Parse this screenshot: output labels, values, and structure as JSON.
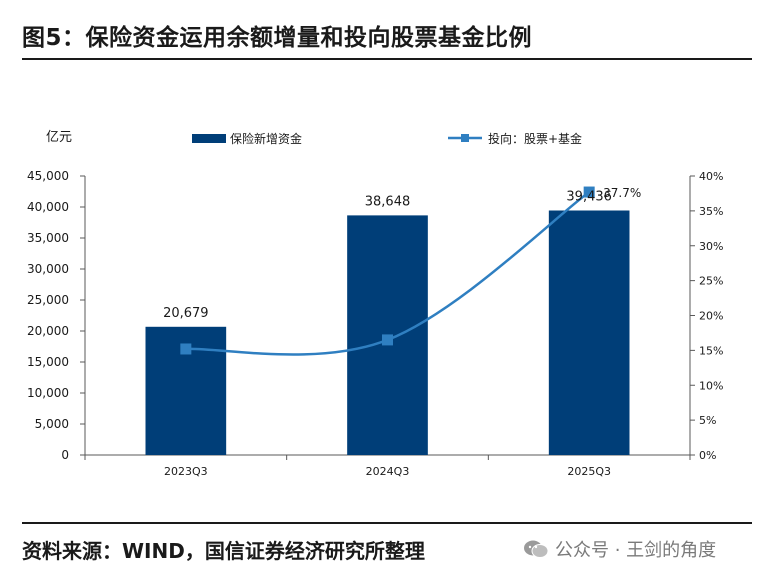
{
  "header": {
    "title": "图5：保险资金运用余额增量和投向股票基金比例"
  },
  "footer": {
    "source": "资料来源：WIND，国信证券经济研究所整理",
    "watermark": "公众号 · 王剑的角度"
  },
  "colors": {
    "bar": "#003e78",
    "line": "#2f7fc1",
    "marker": "#2f7fc1",
    "axis": "#595959"
  },
  "chart_data": {
    "type": "bar",
    "title": "",
    "categories": [
      "2023Q3",
      "2024Q3",
      "2025Q3"
    ],
    "series": [
      {
        "name": "保险新增资金",
        "type": "bar",
        "axis": "left",
        "values": [
          20679,
          38648,
          39436
        ],
        "labels": [
          "20,679",
          "38,648",
          "39,436"
        ]
      },
      {
        "name": "投向：股票+基金",
        "type": "line",
        "axis": "right",
        "values": [
          15.2,
          16.5,
          37.7
        ],
        "labels": [
          "",
          "",
          "37.7%"
        ]
      }
    ],
    "ylabel": "亿元",
    "ylim": [
      0,
      45000
    ],
    "yticks": [
      0,
      5000,
      10000,
      15000,
      20000,
      25000,
      30000,
      35000,
      40000,
      45000
    ],
    "ytick_labels": [
      "0",
      "5,000",
      "10,000",
      "15,000",
      "20,000",
      "25,000",
      "30,000",
      "35,000",
      "40,000",
      "45,000"
    ],
    "y2lim": [
      0,
      40
    ],
    "y2ticks": [
      0,
      5,
      10,
      15,
      20,
      25,
      30,
      35,
      40
    ],
    "y2tick_labels": [
      "0%",
      "5%",
      "10%",
      "15%",
      "20%",
      "25%",
      "30%",
      "35%",
      "40%"
    ],
    "legend_position": "top"
  }
}
